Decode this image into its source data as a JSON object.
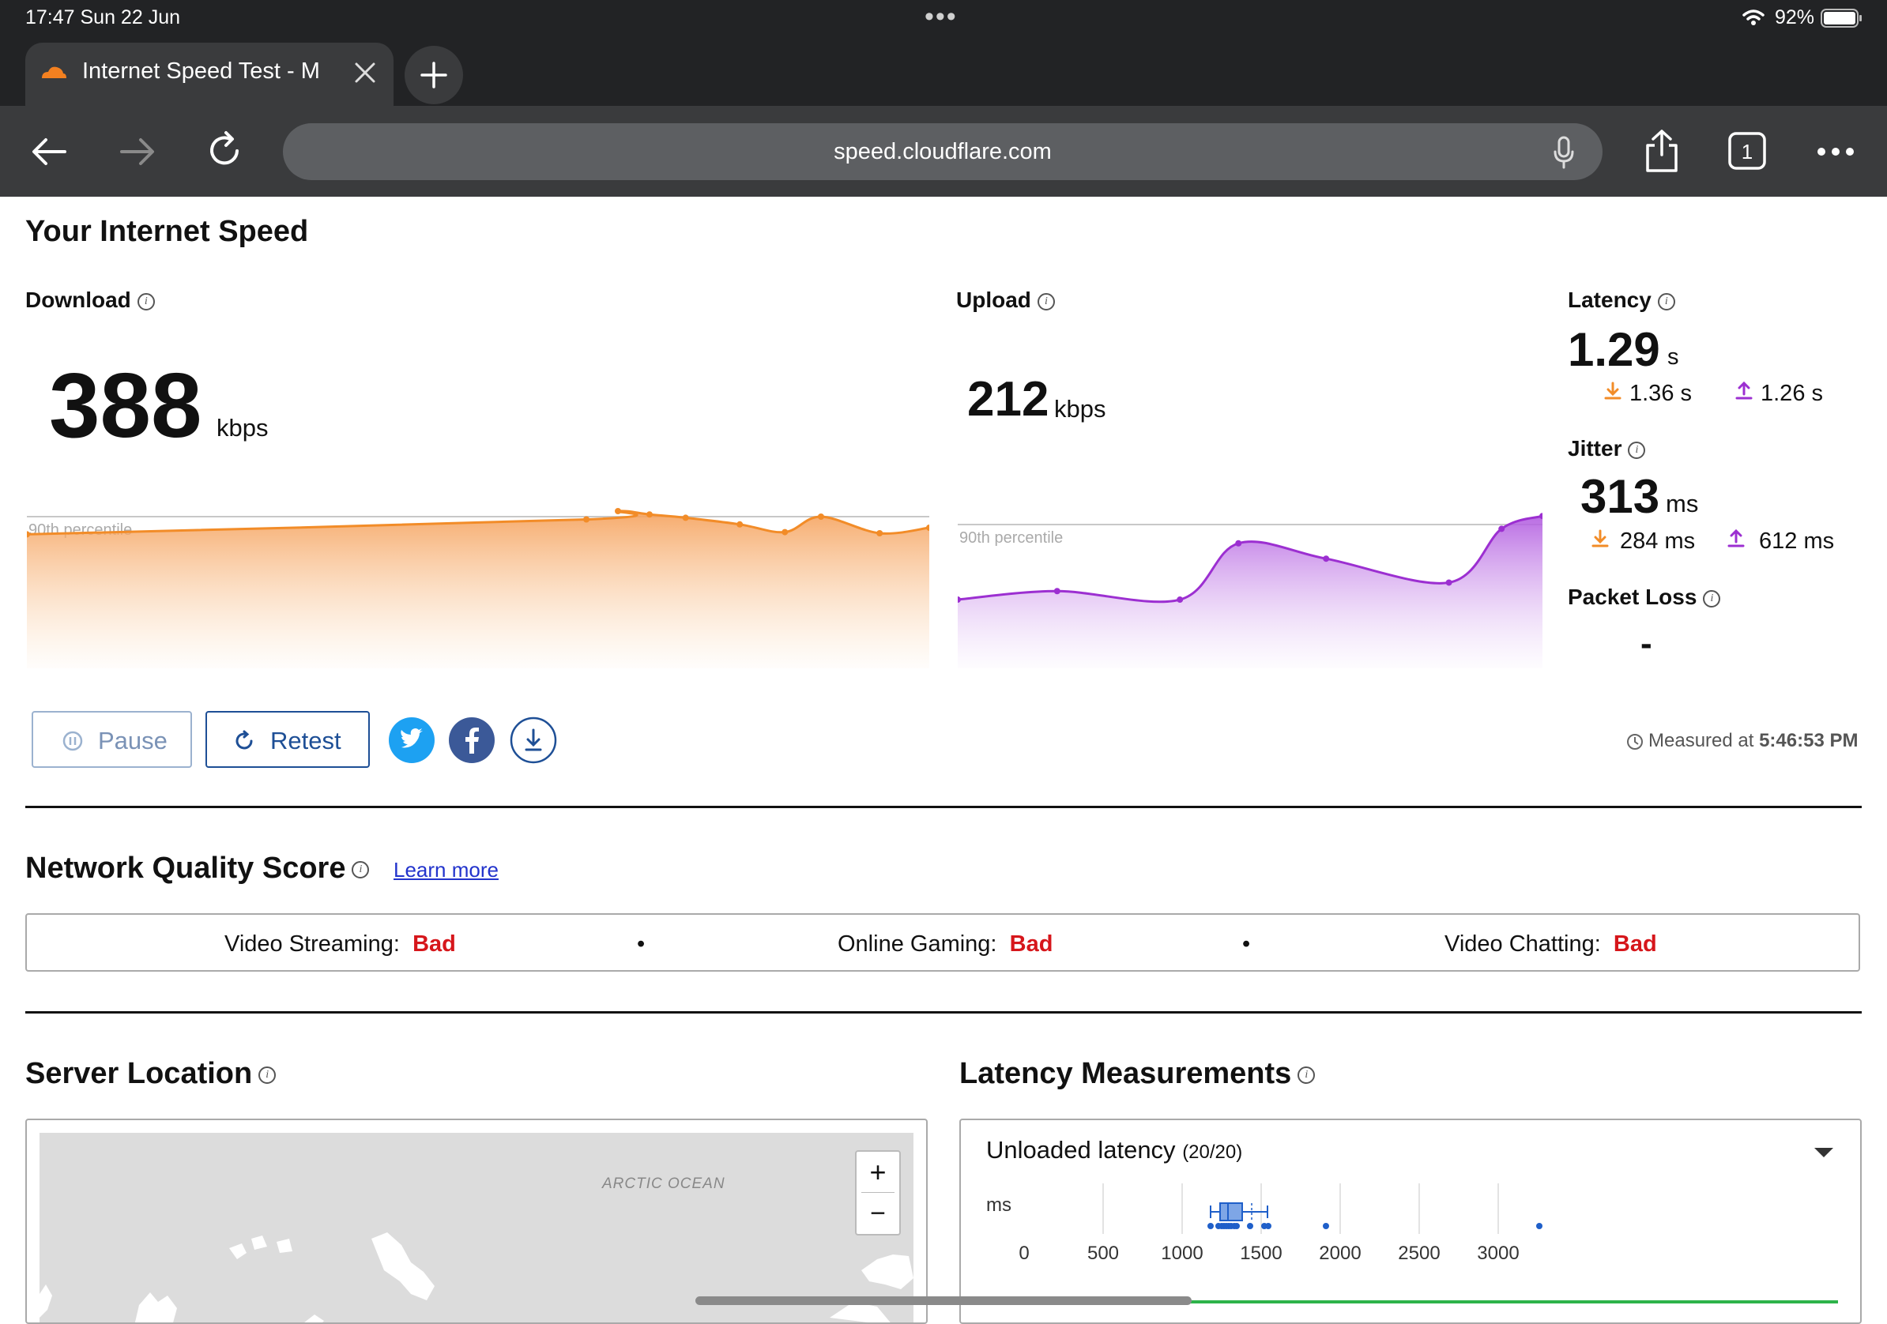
{
  "status_bar": {
    "time": "17:47  Sun 22 Jun",
    "dots": "•••",
    "battery": "92%"
  },
  "browser": {
    "tab_title": "Internet Speed Test - Me",
    "url": "speed.cloudflare.com"
  },
  "page": {
    "heading": "Your Internet Speed",
    "download": {
      "label": "Download",
      "value": "388",
      "unit": "kbps",
      "percentile_label": "90th percentile",
      "color": "#f28c28"
    },
    "upload": {
      "label": "Upload",
      "value": "212",
      "unit": "kbps",
      "percentile_label": "90th percentile",
      "color": "#9c2fd1"
    },
    "latency": {
      "label": "Latency",
      "value": "1.29",
      "unit": "s",
      "down": "1.36 s",
      "up": "1.26 s"
    },
    "jitter": {
      "label": "Jitter",
      "value": "313",
      "unit": "ms",
      "down": "284 ms",
      "up": "612 ms"
    },
    "packet_loss": {
      "label": "Packet Loss",
      "value": "-"
    },
    "buttons": {
      "pause": "Pause",
      "retest": "Retest"
    },
    "measured": {
      "prefix": "Measured at",
      "time": "5:46:53 PM"
    },
    "network_quality": {
      "heading": "Network Quality Score",
      "learn_more": "Learn more",
      "items": [
        {
          "label": "Video Streaming:",
          "status": "Bad"
        },
        {
          "label": "Online Gaming:",
          "status": "Bad"
        },
        {
          "label": "Video Chatting:",
          "status": "Bad"
        }
      ],
      "separator": "•"
    },
    "server_location": {
      "heading": "Server Location",
      "map_label": "ARCTIC OCEAN",
      "zoom_in": "+",
      "zoom_out": "−"
    },
    "latency_measurements": {
      "heading": "Latency Measurements",
      "panel_title": "Unloaded latency",
      "panel_count": "(20/20)",
      "axis_unit": "ms",
      "ticks": [
        "0",
        "500",
        "1000",
        "1500",
        "2000",
        "2500",
        "3000"
      ]
    }
  },
  "chart_data": [
    {
      "type": "area",
      "name": "Download",
      "y_relative": [
        0.68,
        0.95,
        1.1,
        1.04,
        0.98,
        0.86,
        0.72,
        1.0,
        0.7,
        0.8
      ],
      "x_relative": [
        0,
        0.62,
        0.655,
        0.69,
        0.73,
        0.79,
        0.84,
        0.88,
        0.945,
        1
      ]
    },
    {
      "type": "area",
      "name": "Upload",
      "y_relative": [
        0.12,
        0.22,
        0.12,
        0.78,
        0.6,
        0.32,
        0.95,
        1.1
      ],
      "x_relative": [
        0,
        0.17,
        0.38,
        0.48,
        0.63,
        0.84,
        0.93,
        1
      ]
    },
    {
      "type": "scatter",
      "name": "Unloaded latency",
      "x_unit": "ms",
      "xlim": [
        0,
        3500
      ],
      "box": {
        "whisker_low": 1180,
        "q1": 1240,
        "median": 1290,
        "q3": 1380,
        "whisker_high": 1540
      },
      "points": [
        1180,
        1230,
        1250,
        1265,
        1280,
        1295,
        1310,
        1330,
        1345,
        1430,
        1520,
        1545,
        1910,
        3260
      ]
    }
  ]
}
